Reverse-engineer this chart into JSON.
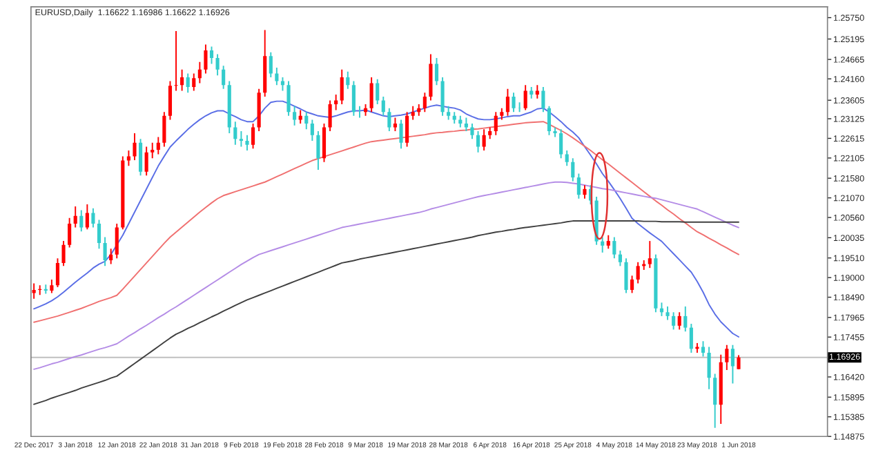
{
  "chart_data": {
    "type": "candlestick",
    "title": "EURUSD,Daily  1.16622 1.16986 1.16622 1.16926",
    "categories": [
      "22 Dec 2017",
      null,
      null,
      null,
      null,
      null,
      null,
      "3 Jan 2018",
      null,
      null,
      null,
      null,
      null,
      null,
      "12 Jan 2018",
      null,
      null,
      null,
      null,
      null,
      null,
      "22 Jan 2018",
      null,
      null,
      null,
      null,
      null,
      null,
      "31 Jan 2018",
      null,
      null,
      null,
      null,
      null,
      null,
      "9 Feb 2018",
      null,
      null,
      null,
      null,
      null,
      null,
      "19 Feb 2018",
      null,
      null,
      null,
      null,
      null,
      null,
      "28 Feb 2018",
      null,
      null,
      null,
      null,
      null,
      null,
      "9 Mar 2018",
      null,
      null,
      null,
      null,
      null,
      null,
      "19 Mar 2018",
      null,
      null,
      null,
      null,
      null,
      null,
      "28 Mar 2018",
      null,
      null,
      null,
      null,
      null,
      null,
      "6 Apr 2018",
      null,
      null,
      null,
      null,
      null,
      null,
      "16 Apr 2018",
      null,
      null,
      null,
      null,
      null,
      null,
      "25 Apr 2018",
      null,
      null,
      null,
      null,
      null,
      null,
      "4 May 2018",
      null,
      null,
      null,
      null,
      null,
      null,
      "14 May 2018",
      null,
      null,
      null,
      null,
      null,
      null,
      "23 May 2018",
      null,
      null,
      null,
      null,
      null,
      null,
      "1 Jun 2018"
    ],
    "ohlc": [
      [
        1.186,
        1.1885,
        1.1845,
        1.1868
      ],
      [
        1.1868,
        1.188,
        1.1855,
        1.187
      ],
      [
        1.187,
        1.1882,
        1.1858,
        1.1866
      ],
      [
        1.1866,
        1.1895,
        1.186,
        1.188
      ],
      [
        1.188,
        1.195,
        1.1875,
        1.1938
      ],
      [
        1.1938,
        1.1995,
        1.193,
        1.1985
      ],
      [
        1.1985,
        1.2055,
        1.1978,
        1.204
      ],
      [
        1.204,
        1.2085,
        1.203,
        1.206
      ],
      [
        1.206,
        1.2075,
        1.202,
        1.203
      ],
      [
        1.203,
        1.209,
        1.2025,
        1.2068
      ],
      [
        1.2068,
        1.208,
        1.203,
        1.204
      ],
      [
        1.204,
        1.205,
        1.1975,
        1.199
      ],
      [
        1.199,
        1.2005,
        1.193,
        1.1945
      ],
      [
        1.1945,
        1.1975,
        1.1935,
        1.196
      ],
      [
        1.196,
        1.204,
        1.195,
        1.203
      ],
      [
        1.203,
        1.2215,
        1.2025,
        1.2204
      ],
      [
        1.2204,
        1.223,
        1.219,
        1.2215
      ],
      [
        1.2215,
        1.2275,
        1.2205,
        1.225
      ],
      [
        1.225,
        1.226,
        1.2165,
        1.2175
      ],
      [
        1.2175,
        1.224,
        1.2165,
        1.2225
      ],
      [
        1.2225,
        1.225,
        1.221,
        1.2232
      ],
      [
        1.2232,
        1.2265,
        1.222,
        1.225
      ],
      [
        1.225,
        1.233,
        1.224,
        1.232
      ],
      [
        1.232,
        1.241,
        1.231,
        1.2398
      ],
      [
        1.2398,
        1.254,
        1.2385,
        1.24
      ],
      [
        1.24,
        1.244,
        1.2385,
        1.242
      ],
      [
        1.242,
        1.243,
        1.238,
        1.2395
      ],
      [
        1.2395,
        1.243,
        1.2385,
        1.2418
      ],
      [
        1.2418,
        1.246,
        1.2405,
        1.244
      ],
      [
        1.244,
        1.2505,
        1.243,
        1.249
      ],
      [
        1.249,
        1.25,
        1.2455,
        1.247
      ],
      [
        1.247,
        1.248,
        1.2425,
        1.244
      ],
      [
        1.244,
        1.245,
        1.239,
        1.24
      ],
      [
        1.24,
        1.241,
        1.2275,
        1.229
      ],
      [
        1.229,
        1.2305,
        1.2245,
        1.226
      ],
      [
        1.226,
        1.228,
        1.224,
        1.2255
      ],
      [
        1.2255,
        1.227,
        1.223,
        1.2245
      ],
      [
        1.2245,
        1.23,
        1.2235,
        1.229
      ],
      [
        1.229,
        1.239,
        1.228,
        1.238
      ],
      [
        1.238,
        1.2543,
        1.237,
        1.2475
      ],
      [
        1.2475,
        1.2485,
        1.242,
        1.243
      ],
      [
        1.243,
        1.2445,
        1.24,
        1.241
      ],
      [
        1.241,
        1.242,
        1.2385,
        1.24
      ],
      [
        1.24,
        1.241,
        1.232,
        1.233
      ],
      [
        1.233,
        1.2345,
        1.2295,
        1.231
      ],
      [
        1.231,
        1.2335,
        1.23,
        1.232
      ],
      [
        1.232,
        1.233,
        1.2285,
        1.23
      ],
      [
        1.23,
        1.231,
        1.2255,
        1.227
      ],
      [
        1.227,
        1.228,
        1.218,
        1.221
      ],
      [
        1.221,
        1.23,
        1.22,
        1.229
      ],
      [
        1.229,
        1.236,
        1.228,
        1.235
      ],
      [
        1.235,
        1.2375,
        1.2335,
        1.236
      ],
      [
        1.236,
        1.244,
        1.235,
        1.242
      ],
      [
        1.242,
        1.2435,
        1.239,
        1.24
      ],
      [
        1.24,
        1.241,
        1.232,
        1.233
      ],
      [
        1.233,
        1.2345,
        1.2315,
        1.233
      ],
      [
        1.233,
        1.235,
        1.232,
        1.234
      ],
      [
        1.234,
        1.242,
        1.233,
        1.2405
      ],
      [
        1.2405,
        1.2415,
        1.235,
        1.236
      ],
      [
        1.236,
        1.237,
        1.232,
        1.233
      ],
      [
        1.233,
        1.234,
        1.228,
        1.229
      ],
      [
        1.229,
        1.2315,
        1.228,
        1.23
      ],
      [
        1.23,
        1.231,
        1.2235,
        1.225
      ],
      [
        1.225,
        1.233,
        1.224,
        1.232
      ],
      [
        1.232,
        1.2345,
        1.231,
        1.233
      ],
      [
        1.233,
        1.235,
        1.232,
        1.234
      ],
      [
        1.234,
        1.238,
        1.233,
        1.237
      ],
      [
        1.237,
        1.248,
        1.236,
        1.2455
      ],
      [
        1.2455,
        1.247,
        1.24,
        1.241
      ],
      [
        1.241,
        1.242,
        1.232,
        1.233
      ],
      [
        1.233,
        1.2345,
        1.231,
        1.232
      ],
      [
        1.232,
        1.233,
        1.23,
        1.231
      ],
      [
        1.231,
        1.232,
        1.229,
        1.23
      ],
      [
        1.23,
        1.2315,
        1.228,
        1.229
      ],
      [
        1.229,
        1.23,
        1.226,
        1.227
      ],
      [
        1.227,
        1.228,
        1.2225,
        1.224
      ],
      [
        1.224,
        1.2285,
        1.223,
        1.227
      ],
      [
        1.227,
        1.229,
        1.226,
        1.228
      ],
      [
        1.228,
        1.233,
        1.227,
        1.232
      ],
      [
        1.232,
        1.234,
        1.231,
        1.233
      ],
      [
        1.233,
        1.239,
        1.232,
        1.237
      ],
      [
        1.237,
        1.238,
        1.233,
        1.234
      ],
      [
        1.234,
        1.2355,
        1.233,
        1.234
      ],
      [
        1.234,
        1.24,
        1.2335,
        1.2385
      ],
      [
        1.2385,
        1.2395,
        1.2365,
        1.2375
      ],
      [
        1.2375,
        1.24,
        1.2365,
        1.2385
      ],
      [
        1.2385,
        1.2395,
        1.233,
        1.234
      ],
      [
        1.234,
        1.2345,
        1.227,
        1.228
      ],
      [
        1.228,
        1.229,
        1.2265,
        1.2275
      ],
      [
        1.2275,
        1.2285,
        1.221,
        1.222
      ],
      [
        1.222,
        1.223,
        1.219,
        1.22
      ],
      [
        1.22,
        1.221,
        1.215,
        1.216
      ],
      [
        1.216,
        1.217,
        1.2105,
        1.2115
      ],
      [
        1.2115,
        1.214,
        1.2105,
        1.213
      ],
      [
        1.213,
        1.214,
        1.209,
        1.21
      ],
      [
        1.21,
        1.211,
        1.1985,
        1.1994
      ],
      [
        1.1994,
        1.2005,
        1.1965,
        1.1983
      ],
      [
        1.1983,
        1.201,
        1.1975,
        1.1995
      ],
      [
        1.1995,
        1.2005,
        1.195,
        1.196
      ],
      [
        1.196,
        1.197,
        1.193,
        1.194
      ],
      [
        1.194,
        1.195,
        1.186,
        1.1868
      ],
      [
        1.1868,
        1.1905,
        1.186,
        1.1895
      ],
      [
        1.1895,
        1.194,
        1.1885,
        1.193
      ],
      [
        1.193,
        1.1945,
        1.192,
        1.1935
      ],
      [
        1.1935,
        1.1995,
        1.1925,
        1.195
      ],
      [
        1.195,
        1.196,
        1.181,
        1.182
      ],
      [
        1.182,
        1.1835,
        1.18,
        1.181
      ],
      [
        1.181,
        1.1825,
        1.179,
        1.18
      ],
      [
        1.18,
        1.181,
        1.1765,
        1.1775
      ],
      [
        1.1775,
        1.181,
        1.1765,
        1.18
      ],
      [
        1.18,
        1.1825,
        1.176,
        1.177
      ],
      [
        1.177,
        1.178,
        1.1705,
        1.1715
      ],
      [
        1.1715,
        1.173,
        1.1705,
        1.172
      ],
      [
        1.172,
        1.1735,
        1.1695,
        1.1705
      ],
      [
        1.1705,
        1.172,
        1.161,
        1.164
      ],
      [
        1.164,
        1.165,
        1.151,
        1.157
      ],
      [
        1.157,
        1.17,
        1.152,
        1.168
      ],
      [
        1.168,
        1.1725,
        1.166,
        1.1715
      ],
      [
        1.1715,
        1.1725,
        1.1625,
        1.167
      ],
      [
        1.16622,
        1.16986,
        1.16622,
        1.16926
      ]
    ],
    "colors": [
      "#ff0000",
      "#ff0000",
      "#33cccc",
      "#ff0000",
      "#ff0000",
      "#ff0000",
      "#ff0000",
      "#ff0000",
      "#33cccc",
      "#ff0000",
      "#33cccc",
      "#33cccc",
      "#33cccc",
      "#ff0000",
      "#ff0000",
      "#ff0000",
      "#ff0000",
      "#ff0000",
      "#33cccc",
      "#ff0000",
      "#ff0000",
      "#ff0000",
      "#ff0000",
      "#ff0000",
      "#ff0000",
      "#ff0000",
      "#33cccc",
      "#ff0000",
      "#ff0000",
      "#ff0000",
      "#33cccc",
      "#33cccc",
      "#33cccc",
      "#33cccc",
      "#33cccc",
      "#33cccc",
      "#33cccc",
      "#ff0000",
      "#ff0000",
      "#ff0000",
      "#33cccc",
      "#33cccc",
      "#33cccc",
      "#33cccc",
      "#33cccc",
      "#ff0000",
      "#33cccc",
      "#33cccc",
      "#33cccc",
      "#ff0000",
      "#ff0000",
      "#ff0000",
      "#ff0000",
      "#33cccc",
      "#33cccc",
      "#33cccc",
      "#ff0000",
      "#ff0000",
      "#33cccc",
      "#33cccc",
      "#33cccc",
      "#ff0000",
      "#33cccc",
      "#ff0000",
      "#ff0000",
      "#ff0000",
      "#ff0000",
      "#ff0000",
      "#33cccc",
      "#33cccc",
      "#33cccc",
      "#33cccc",
      "#33cccc",
      "#33cccc",
      "#33cccc",
      "#33cccc",
      "#ff0000",
      "#ff0000",
      "#ff0000",
      "#ff0000",
      "#ff0000",
      "#33cccc",
      "#33cccc",
      "#ff0000",
      "#33cccc",
      "#ff0000",
      "#33cccc",
      "#33cccc",
      "#33cccc",
      "#33cccc",
      "#33cccc",
      "#33cccc",
      "#33cccc",
      "#ff0000",
      "#33cccc",
      "#33cccc",
      "#33cccc",
      "#ff0000",
      "#33cccc",
      "#33cccc",
      "#33cccc",
      "#ff0000",
      "#ff0000",
      "#ff0000",
      "#ff0000",
      "#33cccc",
      "#33cccc",
      "#33cccc",
      "#33cccc",
      "#ff0000",
      "#33cccc",
      "#33cccc",
      "#ff0000",
      "#33cccc",
      "#33cccc",
      "#33cccc",
      "#ff0000",
      "#ff0000",
      "#33cccc",
      "#ff0000"
    ],
    "series": [
      {
        "type": "line",
        "color": "#5a6ee6",
        "values": [
          1.1819,
          1.1825,
          1.1832,
          1.184,
          1.185,
          1.1862,
          1.1875,
          1.1888,
          1.19,
          1.1912,
          1.1925,
          1.1935,
          1.1942,
          1.196,
          1.1985,
          1.201,
          1.204,
          1.207,
          1.21,
          1.213,
          1.216,
          1.219,
          1.2215,
          1.2239,
          1.2255,
          1.227,
          1.2285,
          1.2298,
          1.231,
          1.232,
          1.2328,
          1.2333,
          1.2333,
          1.2325,
          1.2318,
          1.231,
          1.2305,
          1.2305,
          1.232,
          1.234,
          1.2355,
          1.2358,
          1.2358,
          1.2352,
          1.2345,
          1.2338,
          1.233,
          1.2325,
          1.232,
          1.2318,
          1.2316,
          1.232,
          1.2325,
          1.233,
          1.2333,
          1.2333,
          1.2335,
          1.233,
          1.2325,
          1.232,
          1.2318,
          1.232,
          1.2322,
          1.2325,
          1.233,
          1.2335,
          1.234,
          1.2345,
          1.2348,
          1.2345,
          1.2342,
          1.234,
          1.2335,
          1.2325,
          1.2318,
          1.2312,
          1.231,
          1.231,
          1.2312,
          1.2315,
          1.2318,
          1.232,
          1.232,
          1.2325,
          1.233,
          1.2338,
          1.234,
          1.233,
          1.2318,
          1.2305,
          1.229,
          1.2278,
          1.2263,
          1.224,
          1.2218,
          1.2195,
          1.217,
          1.215,
          1.2128,
          1.2105,
          1.208,
          1.2054,
          1.204,
          1.2028,
          1.2016,
          1.2005,
          1.1994,
          1.1978,
          1.1962,
          1.1946,
          1.193,
          1.1914,
          1.189,
          1.1862,
          1.183,
          1.1805,
          1.1785,
          1.177,
          1.1755,
          1.1746
        ]
      },
      {
        "type": "line",
        "color": "#f07070",
        "values": [
          1.1784,
          1.1788,
          1.1792,
          1.1796,
          1.18,
          1.1805,
          1.181,
          1.1815,
          1.182,
          1.1826,
          1.1832,
          1.1838,
          1.1843,
          1.1848,
          1.1854,
          1.187,
          1.1887,
          1.1904,
          1.1921,
          1.1938,
          1.1955,
          1.1972,
          1.1989,
          1.2005,
          1.2018,
          1.2031,
          1.2044,
          1.2057,
          1.207,
          1.2082,
          1.2094,
          1.2105,
          1.2113,
          1.2118,
          1.2123,
          1.2128,
          1.2133,
          1.2138,
          1.2143,
          1.2148,
          1.2155,
          1.2162,
          1.2169,
          1.2176,
          1.2183,
          1.219,
          1.2197,
          1.2204,
          1.2209,
          1.2214,
          1.2219,
          1.2224,
          1.2229,
          1.2234,
          1.2239,
          1.2244,
          1.2249,
          1.2253,
          1.2255,
          1.2257,
          1.2259,
          1.2261,
          1.2263,
          1.2265,
          1.2267,
          1.2269,
          1.2271,
          1.2274,
          1.2276,
          1.2277,
          1.2279,
          1.228,
          1.2282,
          1.2283,
          1.2285,
          1.2286,
          1.2288,
          1.229,
          1.2292,
          1.2294,
          1.2296,
          1.2298,
          1.23,
          1.2302,
          1.2303,
          1.2304,
          1.2305,
          1.2298,
          1.229,
          1.2282,
          1.2273,
          1.2263,
          1.2252,
          1.2241,
          1.223,
          1.2218,
          1.2206,
          1.2195,
          1.2183,
          1.2171,
          1.2159,
          1.2147,
          1.2135,
          1.2123,
          1.2111,
          1.2099,
          1.2088,
          1.2076,
          1.2065,
          1.2053,
          1.2042,
          1.203,
          1.2019,
          1.2011,
          1.2002,
          1.1994,
          1.1985,
          1.1977,
          1.1968,
          1.196
        ]
      },
      {
        "type": "line",
        "color": "#b48ce6",
        "values": [
          1.1662,
          1.1666,
          1.1671,
          1.1676,
          1.168,
          1.1685,
          1.169,
          1.1695,
          1.1699,
          1.1704,
          1.1709,
          1.1714,
          1.1718,
          1.1723,
          1.1728,
          1.1738,
          1.1748,
          1.1757,
          1.1767,
          1.1776,
          1.1786,
          1.1796,
          1.1805,
          1.1815,
          1.1824,
          1.1834,
          1.1844,
          1.1854,
          1.1864,
          1.1874,
          1.1884,
          1.1894,
          1.1904,
          1.1914,
          1.1924,
          1.1934,
          1.1943,
          1.1952,
          1.196,
          1.1965,
          1.197,
          1.1975,
          1.198,
          1.1985,
          1.199,
          1.1995,
          1.2,
          1.2005,
          1.201,
          1.2015,
          1.202,
          1.2025,
          1.203,
          1.2033,
          1.2036,
          1.2039,
          1.2042,
          1.2045,
          1.2048,
          1.2051,
          1.2054,
          1.2057,
          1.206,
          1.2063,
          1.2066,
          1.2069,
          1.2073,
          1.2078,
          1.2082,
          1.2086,
          1.209,
          1.2094,
          1.2098,
          1.2102,
          1.2106,
          1.211,
          1.2113,
          1.2116,
          1.2119,
          1.2122,
          1.2125,
          1.2128,
          1.2131,
          1.2134,
          1.2137,
          1.214,
          1.2143,
          1.2146,
          1.2148,
          1.2148,
          1.2147,
          1.2145,
          1.2143,
          1.214,
          1.2137,
          1.2134,
          1.2131,
          1.2129,
          1.2126,
          1.2123,
          1.212,
          1.2117,
          1.2114,
          1.2111,
          1.2108,
          1.2106,
          1.2102,
          1.2098,
          1.2094,
          1.209,
          1.2086,
          1.2082,
          1.2078,
          1.2071,
          1.2064,
          1.2057,
          1.205,
          1.2043,
          1.2036,
          1.203
        ]
      },
      {
        "type": "line",
        "color": "#404040",
        "values": [
          1.1571,
          1.1576,
          1.1581,
          1.1587,
          1.1592,
          1.1597,
          1.1602,
          1.1607,
          1.1613,
          1.1618,
          1.1623,
          1.1628,
          1.1633,
          1.1639,
          1.1644,
          1.1655,
          1.1666,
          1.1677,
          1.1688,
          1.1699,
          1.171,
          1.1721,
          1.1732,
          1.1743,
          1.1753,
          1.176,
          1.1768,
          1.1775,
          1.1783,
          1.179,
          1.1798,
          1.1805,
          1.1813,
          1.182,
          1.1828,
          1.1835,
          1.1842,
          1.1848,
          1.1854,
          1.186,
          1.1866,
          1.1872,
          1.1878,
          1.1884,
          1.189,
          1.1896,
          1.1902,
          1.1908,
          1.1914,
          1.192,
          1.1926,
          1.1932,
          1.1938,
          1.1941,
          1.1944,
          1.1948,
          1.1951,
          1.1954,
          1.1957,
          1.196,
          1.1963,
          1.1966,
          1.1969,
          1.1972,
          1.1975,
          1.1978,
          1.1981,
          1.1984,
          1.1987,
          1.199,
          1.1993,
          1.1996,
          1.1999,
          1.2002,
          1.2005,
          1.2009,
          1.2012,
          1.2015,
          1.2018,
          1.202,
          1.2023,
          1.2025,
          1.2028,
          1.203,
          1.2032,
          1.2034,
          1.2036,
          1.2038,
          1.204,
          1.2042,
          1.2045,
          1.2047,
          1.2047,
          1.2047,
          1.2047,
          1.2047,
          1.2047,
          1.2047,
          1.2047,
          1.2047,
          1.2047,
          1.2047,
          1.2047,
          1.2046,
          1.2046,
          1.2046,
          1.2045,
          1.2045,
          1.2045,
          1.2045,
          1.2044,
          1.2044,
          1.2044,
          1.2044,
          1.2044,
          1.2044,
          1.2044,
          1.2044,
          1.2044,
          1.2044
        ]
      }
    ],
    "ylim": [
      1.14875,
      1.2603
    ],
    "yticks": [
      {
        "value": 1.2575,
        "label": "1.25750"
      },
      {
        "value": 1.25195,
        "label": "1.25195"
      },
      {
        "value": 1.24665,
        "label": "1.24665"
      },
      {
        "value": 1.2416,
        "label": "1.24160"
      },
      {
        "value": 1.23605,
        "label": "1.23605"
      },
      {
        "value": 1.23125,
        "label": "1.23125"
      },
      {
        "value": 1.22615,
        "label": "1.22615"
      },
      {
        "value": 1.22105,
        "label": "1.22105"
      },
      {
        "value": 1.2158,
        "label": "1.21580"
      },
      {
        "value": 1.2107,
        "label": "1.21070"
      },
      {
        "value": 1.2056,
        "label": "1.20560"
      },
      {
        "value": 1.20035,
        "label": "1.20035"
      },
      {
        "value": 1.1951,
        "label": "1.19510"
      },
      {
        "value": 1.19,
        "label": "1.19000"
      },
      {
        "value": 1.1849,
        "label": "1.18490"
      },
      {
        "value": 1.17965,
        "label": "1.17965"
      },
      {
        "value": 1.17455,
        "label": "1.17455"
      },
      {
        "value": 1.1642,
        "label": "1.16420"
      },
      {
        "value": 1.15895,
        "label": "1.15895"
      },
      {
        "value": 1.15385,
        "label": "1.15385"
      },
      {
        "value": 1.14875,
        "label": "1.14875"
      }
    ],
    "ref_lines": [
      {
        "axis": "y",
        "value": 1.16926,
        "label": "1.16926",
        "color": "#c0c0c0"
      }
    ],
    "grid": false,
    "legend": false
  }
}
